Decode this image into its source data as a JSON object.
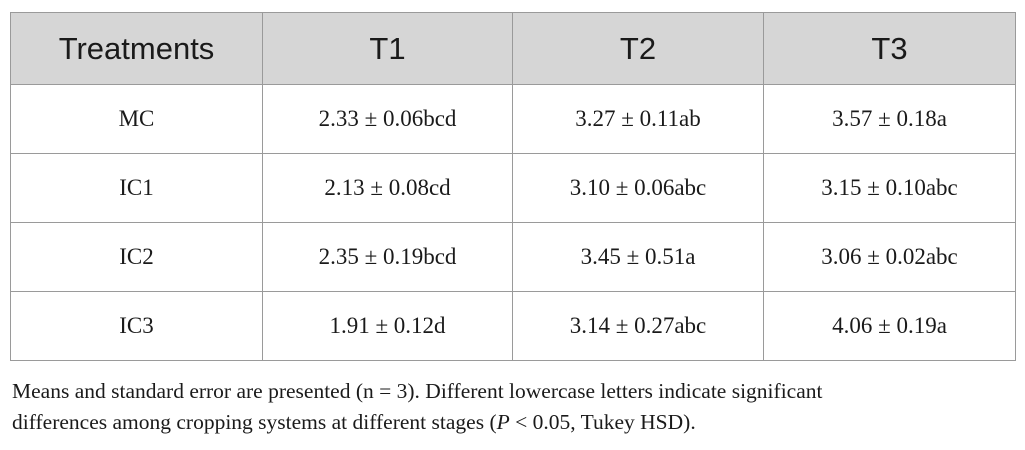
{
  "table": {
    "headers": [
      "Treatments",
      "T1",
      "T2",
      "T3"
    ],
    "rows": [
      [
        "MC",
        "2.33 ± 0.06bcd",
        "3.27 ± 0.11ab",
        "3.57 ± 0.18a"
      ],
      [
        "IC1",
        "2.13 ± 0.08cd",
        "3.10 ± 0.06abc",
        "3.15 ± 0.10abc"
      ],
      [
        "IC2",
        "2.35 ± 0.19bcd",
        "3.45 ± 0.51a",
        "3.06 ± 0.02abc"
      ],
      [
        "IC3",
        "1.91 ± 0.12d",
        "3.14 ± 0.27abc",
        "4.06 ± 0.19a"
      ]
    ]
  },
  "footnote": {
    "line1": "Means and standard error are presented (n = 3). Different lowercase letters indicate significant",
    "line2_pre": "differences among cropping systems at different stages (",
    "line2_p": "P",
    "line2_post": " < 0.05, Tukey HSD)."
  },
  "colors": {
    "header_bg": "#d6d6d6",
    "border": "#9a9a9a",
    "text": "#1a1a1a"
  }
}
